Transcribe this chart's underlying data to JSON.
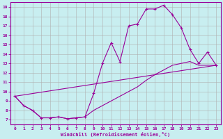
{
  "xlabel": "Windchill (Refroidissement éolien,°C)",
  "bg_color": "#c8eef0",
  "line_color": "#990099",
  "grid_color": "#b0b0b0",
  "xlim": [
    -0.5,
    23.5
  ],
  "ylim": [
    6.5,
    19.5
  ],
  "xticks": [
    0,
    1,
    2,
    3,
    4,
    5,
    6,
    7,
    8,
    9,
    10,
    11,
    12,
    13,
    14,
    15,
    16,
    17,
    18,
    19,
    20,
    21,
    22,
    23
  ],
  "yticks": [
    7,
    8,
    9,
    10,
    11,
    12,
    13,
    14,
    15,
    16,
    17,
    18,
    19
  ],
  "line1_x": [
    0,
    1,
    2,
    3,
    4,
    5,
    6,
    7,
    8,
    9,
    10,
    11,
    12,
    13,
    14,
    15,
    16,
    17,
    18,
    19,
    20,
    21,
    22,
    23
  ],
  "line1_y": [
    9.5,
    8.5,
    8.0,
    7.2,
    7.2,
    7.3,
    7.1,
    7.2,
    7.3,
    9.8,
    13.0,
    15.2,
    13.2,
    17.0,
    17.2,
    18.8,
    18.8,
    19.2,
    18.2,
    16.8,
    14.5,
    13.0,
    14.2,
    12.8
  ],
  "line2_x": [
    0,
    1,
    2,
    3,
    4,
    5,
    6,
    7,
    8,
    9,
    10,
    11,
    12,
    13,
    14,
    15,
    16,
    17,
    18,
    19,
    20,
    21,
    22,
    23
  ],
  "line2_y": [
    9.5,
    8.5,
    8.0,
    7.2,
    7.2,
    7.3,
    7.1,
    7.2,
    7.3,
    8.0,
    8.5,
    9.0,
    9.5,
    10.0,
    10.5,
    11.2,
    11.8,
    12.3,
    12.8,
    13.0,
    13.2,
    12.8,
    12.8,
    12.8
  ],
  "line3_x": [
    0,
    23
  ],
  "line3_y": [
    9.5,
    12.8
  ]
}
